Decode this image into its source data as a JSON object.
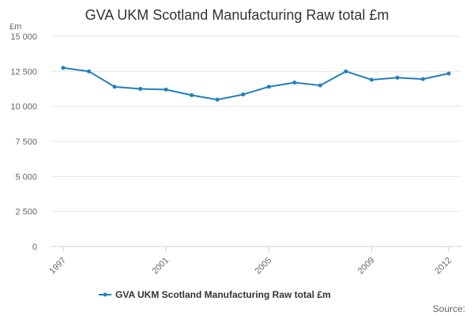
{
  "chart_data": {
    "type": "line",
    "title": "GVA UKM Scotland Manufacturing Raw total £m",
    "ylabel": "£m",
    "xlabel": "",
    "ylim": [
      0,
      15000
    ],
    "yticks": [
      0,
      2500,
      5000,
      7500,
      10000,
      12500,
      15000
    ],
    "ytick_labels": [
      "0",
      "2 500",
      "5 000",
      "7 500",
      "10 000",
      "12 500",
      "15 000"
    ],
    "x": [
      1997,
      1998,
      1999,
      2000,
      2001,
      2002,
      2003,
      2004,
      2005,
      2006,
      2007,
      2008,
      2009,
      2010,
      2011,
      2012
    ],
    "xticks": [
      1997,
      2001,
      2005,
      2009,
      2012
    ],
    "xtick_labels": [
      "1997",
      "2001",
      "2005",
      "2009",
      "2012"
    ],
    "series": [
      {
        "name": "GVA UKM Scotland Manufacturing Raw total £m",
        "color": "#1f7fbf",
        "values": [
          12750,
          12500,
          11400,
          11250,
          11200,
          10800,
          10480,
          10850,
          11400,
          11700,
          11500,
          12500,
          11900,
          12050,
          11950,
          12350
        ]
      }
    ],
    "grid": true,
    "legend_position": "bottom-center"
  },
  "footer": {
    "source_label": "Source:"
  }
}
